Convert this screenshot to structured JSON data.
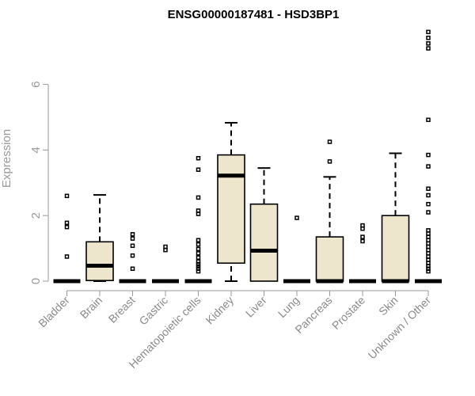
{
  "chart_data": {
    "type": "boxplot",
    "title": "ENSG00000187481 - HSD3BP1",
    "ylabel": "Expression",
    "xlabel": "",
    "ylim": [
      0,
      7.8
    ],
    "yticks": [
      0,
      2,
      4,
      6
    ],
    "grid": false,
    "colors": {
      "box_fill": "#ede6cd",
      "line": "#000000",
      "axis": "#9a9a9a"
    },
    "categories": [
      "Bladder",
      "Brain",
      "Breast",
      "Gastric",
      "Hematopoietic cells",
      "Kidney",
      "Liver",
      "Lung",
      "Pancreas",
      "Prostate",
      "Skin",
      "Unknown / Other"
    ],
    "boxes": [
      {
        "min": 0,
        "q1": 0,
        "median": 0,
        "q3": 0,
        "max": 0,
        "outliers": [
          0.75,
          1.65,
          1.78,
          2.6
        ]
      },
      {
        "min": 0,
        "q1": 0.02,
        "median": 0.47,
        "q3": 1.2,
        "max": 2.63,
        "outliers": []
      },
      {
        "min": 0,
        "q1": 0,
        "median": 0,
        "q3": 0,
        "max": 0,
        "outliers": [
          0.38,
          0.78,
          1.08,
          1.3,
          1.43
        ]
      },
      {
        "min": 0,
        "q1": 0,
        "median": 0,
        "q3": 0,
        "max": 0,
        "outliers": [
          0.95,
          1.05
        ]
      },
      {
        "min": 0,
        "q1": 0,
        "median": 0,
        "q3": 0,
        "max": 0,
        "outliers": [
          0.3,
          0.38,
          0.45,
          0.52,
          0.6,
          0.72,
          0.85,
          0.98,
          1.12,
          1.25,
          2.05,
          2.15,
          2.55,
          3.4,
          3.75
        ]
      },
      {
        "min": 0,
        "q1": 0.55,
        "median": 3.22,
        "q3": 3.85,
        "max": 4.83,
        "outliers": []
      },
      {
        "min": 0,
        "q1": 0,
        "median": 0.93,
        "q3": 2.35,
        "max": 3.45,
        "outliers": []
      },
      {
        "min": 0,
        "q1": 0,
        "median": 0,
        "q3": 0,
        "max": 0,
        "outliers": [
          1.93
        ]
      },
      {
        "min": 0,
        "q1": 0,
        "median": 0,
        "q3": 1.35,
        "max": 3.18,
        "outliers": [
          3.65,
          4.25
        ]
      },
      {
        "min": 0,
        "q1": 0,
        "median": 0,
        "q3": 0,
        "max": 0,
        "outliers": [
          1.22,
          1.35,
          1.6,
          1.7
        ]
      },
      {
        "min": 0,
        "q1": 0,
        "median": 0,
        "q3": 2.0,
        "max": 3.9,
        "outliers": []
      },
      {
        "min": 0,
        "q1": 0,
        "median": 0,
        "q3": 0,
        "max": 0,
        "outliers": [
          0.3,
          0.38,
          0.46,
          0.55,
          0.65,
          0.75,
          0.85,
          0.95,
          1.05,
          1.15,
          1.25,
          1.35,
          1.45,
          1.55,
          2.1,
          2.35,
          2.62,
          2.82,
          3.5,
          3.85,
          4.92,
          7.1,
          7.25,
          7.42,
          7.6
        ]
      }
    ]
  }
}
